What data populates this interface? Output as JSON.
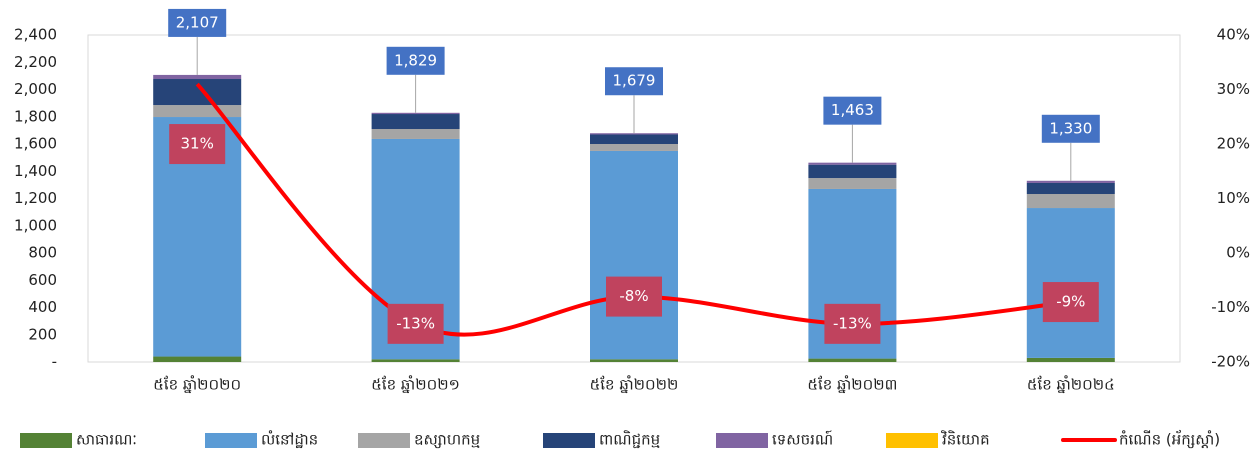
{
  "chart_data": {
    "type": "stacked_bar_line",
    "categories": [
      "៥ខែ ឆ្នាំ២០២០",
      "៥ខែ ឆ្នាំ២០២១",
      "៥ខែ ឆ្នាំ២០២២",
      "៥ខែ ឆ្នាំ២០២៣",
      "៥ខែ ឆ្នាំ២០២៤"
    ],
    "series": [
      {
        "name": "សាធារណៈ",
        "color": "#548235",
        "values": [
          40,
          20,
          20,
          25,
          30
        ]
      },
      {
        "name": "លំនៅដ្ឋាន",
        "color": "#5b9bd5",
        "values": [
          1758,
          1617,
          1529,
          1245,
          1100
        ]
      },
      {
        "name": "ឧស្សាហកម្ម",
        "color": "#a5a5a5",
        "values": [
          88,
          73,
          51,
          80,
          103
        ]
      },
      {
        "name": "ពាណិជ្ជកម្ម",
        "color": "#264478",
        "values": [
          191,
          110,
          70,
          98,
          81
        ]
      },
      {
        "name": "ទេសចរណ៍",
        "color": "#8064a2",
        "values": [
          30,
          9,
          9,
          15,
          16
        ]
      },
      {
        "name": "វិនិយោគ",
        "color": "#ffc000",
        "values": [
          0,
          0,
          0,
          0,
          0
        ]
      },
      {
        "name": "កំណើន (អ័ក្សស្តាំ)",
        "color": "#ff0000",
        "axis": "y2",
        "type": "line",
        "values": [
          31,
          -13,
          -8,
          -13,
          -9
        ],
        "value_labels": [
          "31%",
          "-13%",
          "-8%",
          "-13%",
          "-9%"
        ]
      }
    ],
    "totals": {
      "values": [
        2107,
        1829,
        1679,
        1463,
        1330
      ],
      "value_labels": [
        "2,107",
        "1,829",
        "1,679",
        "1,463",
        "1,330"
      ]
    },
    "ylim": [
      0,
      2400
    ],
    "yticks": [
      {
        "value": 0,
        "label": "-"
      },
      200,
      400,
      600,
      800,
      {
        "value": 1000,
        "label": "1,000"
      },
      {
        "value": 1200,
        "label": "1,200"
      },
      {
        "value": 1400,
        "label": "1,400"
      },
      {
        "value": 1600,
        "label": "1,600"
      },
      {
        "value": 1800,
        "label": "1,800"
      },
      {
        "value": 2000,
        "label": "2,000"
      },
      {
        "value": 2200,
        "label": "2,200"
      },
      {
        "value": 2400,
        "label": "2,400"
      }
    ],
    "y2lim": [
      -20,
      40
    ],
    "y2ticks": [
      {
        "value": -20,
        "label": "-20%"
      },
      {
        "value": -10,
        "label": "-10%"
      },
      {
        "value": 0,
        "label": "0%"
      },
      {
        "value": 10,
        "label": "10%"
      },
      {
        "value": 20,
        "label": "20%"
      },
      {
        "value": 30,
        "label": "30%"
      },
      {
        "value": 40,
        "label": "40%"
      }
    ],
    "grid": false,
    "legend": "bottom"
  }
}
